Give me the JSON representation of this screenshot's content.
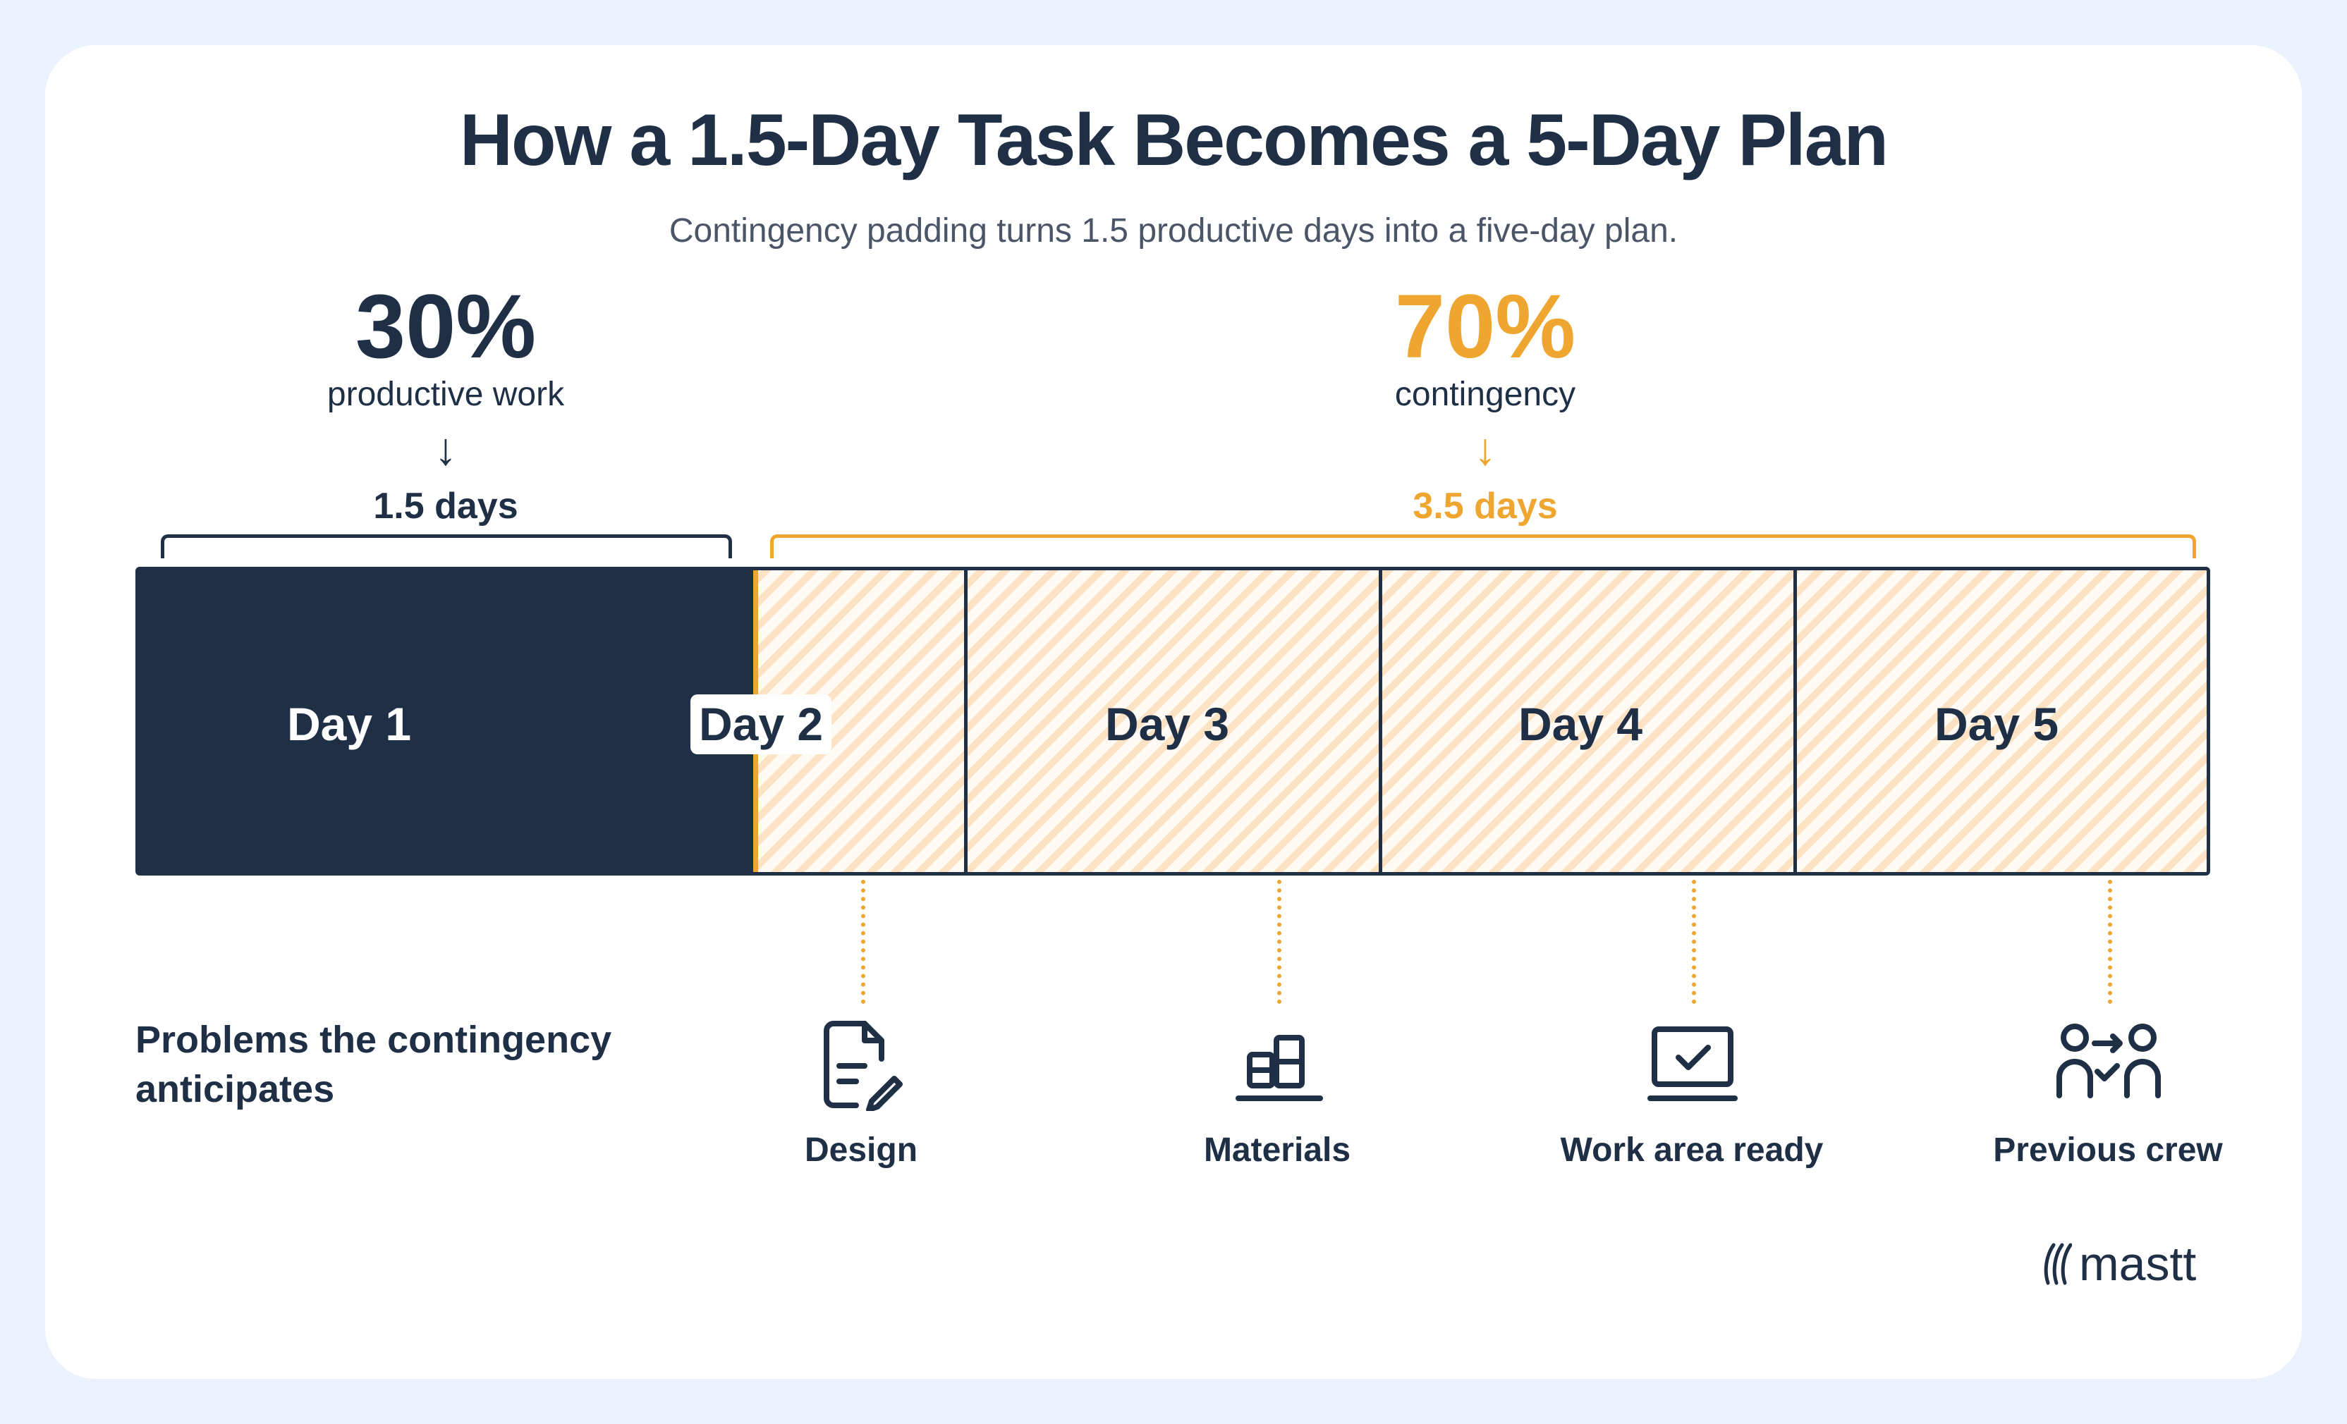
{
  "title": "How a 1.5-Day Task Becomes a 5-Day Plan",
  "subtitle": "Contingency padding turns 1.5 productive days into a five-day plan.",
  "productive": {
    "percent": "30%",
    "label": "productive work",
    "arrow": "↓",
    "days": "1.5 days"
  },
  "contingency": {
    "percent": "70%",
    "label": "contingency",
    "arrow": "↓",
    "days": "3.5 days"
  },
  "days": [
    "Day 1",
    "Day 2",
    "Day 3",
    "Day 4",
    "Day 5"
  ],
  "problems": {
    "title": "Problems the contingency anticipates",
    "items": [
      {
        "label": "Design",
        "icon": "document-pen-icon"
      },
      {
        "label": "Materials",
        "icon": "boxes-icon"
      },
      {
        "label": "Work area ready",
        "icon": "laptop-check-icon"
      },
      {
        "label": "Previous crew",
        "icon": "crew-handoff-icon"
      }
    ]
  },
  "brand": "mastt",
  "colors": {
    "navy": "#1F2F46",
    "orange": "#EFA630",
    "background": "#EBF1FD"
  }
}
